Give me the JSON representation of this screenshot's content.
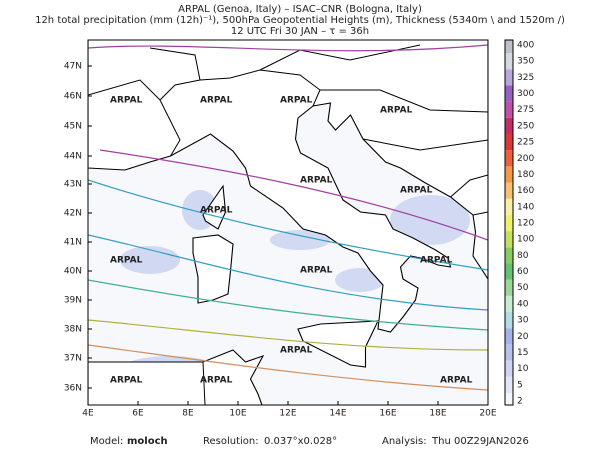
{
  "header": {
    "line1": "ARPAL (Genoa, Italy)  –  ISAC–CNR (Bologna, Italy)",
    "line2": "12h total precipitation (mm (12h)⁻¹), 500hPa Geopotential Heights (m), Thickness (5340m \\ and 1520m /)",
    "line3": "12 UTC Fri 30 JAN  –  τ = 36h"
  },
  "map": {
    "lat_labels": [
      "47N",
      "46N",
      "45N",
      "44N",
      "43N",
      "42N",
      "41N",
      "40N",
      "39N",
      "38N",
      "37N",
      "36N"
    ],
    "lon_labels": [
      "4E",
      "6E",
      "8E",
      "10E",
      "12E",
      "14E",
      "16E",
      "18E",
      "20E"
    ],
    "watermark": "ARPAL"
  },
  "colorbar": {
    "levels": [
      2,
      5,
      10,
      15,
      20,
      30,
      40,
      50,
      60,
      80,
      100,
      120,
      140,
      160,
      180,
      200,
      225,
      250,
      275,
      300,
      325,
      350,
      400
    ],
    "colors": [
      "#f4f6fc",
      "#e2e6f8",
      "#ccd4f2",
      "#b6c2ec",
      "#a4b4e6",
      "#b4dce8",
      "#c8ecd0",
      "#9ad89a",
      "#66c070",
      "#88cc60",
      "#c4e060",
      "#f0f070",
      "#f8f0a8",
      "#f8c070",
      "#f49850",
      "#ec6040",
      "#d83838",
      "#c03060",
      "#c050a8",
      "#9860c0",
      "#b8a8d8",
      "#d8d8e0",
      "#c0c0c8"
    ]
  },
  "footer": {
    "model_label": "Model:",
    "model": "moloch",
    "resolution_label": "Resolution:",
    "resolution": "0.037°x0.028°",
    "analysis_label": "Analysis:",
    "analysis": "Thu 00Z29JAN2026"
  }
}
